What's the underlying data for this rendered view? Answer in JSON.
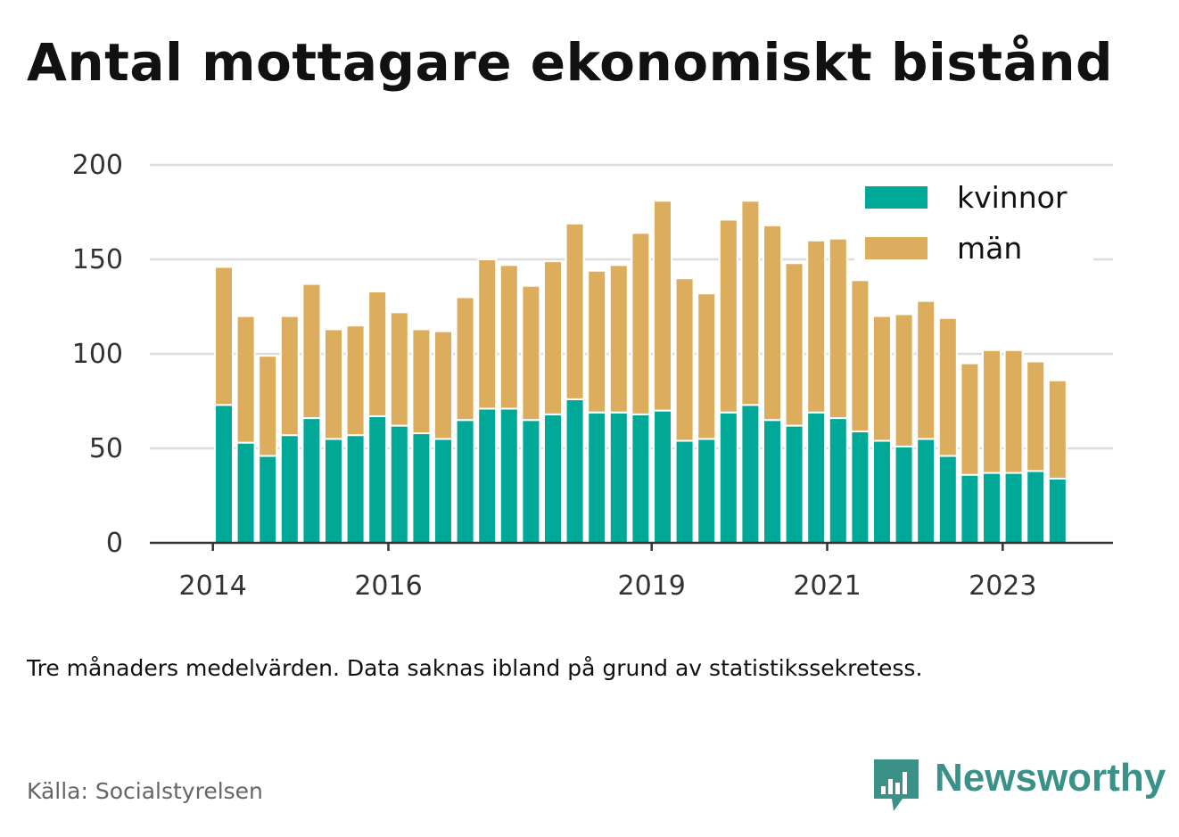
{
  "title": "Antal mottagare ekonomiskt bistånd",
  "note": "Tre månaders medelvärden. Data saknas ibland på grund av statistikssekretess.",
  "source": "Källa: Socialstyrelsen",
  "brand": {
    "name": "Newsworthy",
    "icon": "newsworthy-logo-icon",
    "color": "#3a9188"
  },
  "chart_data": {
    "type": "bar",
    "stacked": true,
    "title": "Antal mottagare ekonomiskt bistånd",
    "xlabel": "",
    "ylabel": "",
    "ylim": [
      0,
      200
    ],
    "yticks": [
      0,
      50,
      100,
      150,
      200
    ],
    "grid": true,
    "legend_position": "top-right",
    "x_tick_labels": [
      "2014",
      "2016",
      "2019",
      "2021",
      "2023"
    ],
    "x_tick_category_index": [
      -1,
      7,
      19,
      27,
      35
    ],
    "categories": [
      "2014 Q2",
      "2014 Q3",
      "2014 Q4",
      "2015 Q1",
      "2015 Q2",
      "2015 Q3",
      "2015 Q4",
      "2016 Q1",
      "2016 Q2",
      "2016 Q3",
      "2016 Q4",
      "2017 Q1",
      "2017 Q2",
      "2017 Q3",
      "2017 Q4",
      "2018 Q1",
      "2018 Q2",
      "2018 Q3",
      "2018 Q4",
      "2019 Q1",
      "2019 Q2",
      "2019 Q3",
      "2019 Q4",
      "2020 Q1",
      "2020 Q2",
      "2020 Q3",
      "2020 Q4",
      "2021 Q1",
      "2021 Q2",
      "2021 Q3",
      "2021 Q4",
      "2022 Q1",
      "2022 Q2",
      "2022 Q3",
      "2022 Q4",
      "2023 Q1",
      "2023 Q2",
      "2023 Q3",
      "2023 Q4"
    ],
    "series": [
      {
        "name": "kvinnor",
        "color": "#00a898",
        "values": [
          73,
          53,
          46,
          57,
          66,
          55,
          57,
          67,
          62,
          58,
          55,
          65,
          71,
          71,
          65,
          68,
          76,
          69,
          69,
          68,
          70,
          54,
          55,
          69,
          73,
          65,
          62,
          69,
          66,
          59,
          54,
          51,
          55,
          46,
          36,
          37,
          37,
          38,
          34
        ]
      },
      {
        "name": "män",
        "color": "#dcad5c",
        "values": [
          73,
          67,
          53,
          63,
          71,
          58,
          58,
          66,
          60,
          55,
          57,
          65,
          79,
          76,
          71,
          81,
          93,
          75,
          78,
          96,
          111,
          86,
          77,
          102,
          108,
          103,
          86,
          91,
          95,
          80,
          66,
          70,
          73,
          73,
          59,
          65,
          65,
          58,
          52
        ]
      }
    ]
  }
}
